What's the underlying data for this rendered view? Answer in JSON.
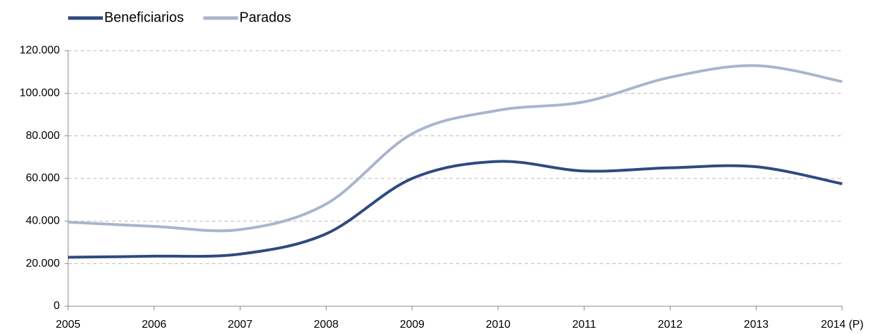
{
  "chart_data": {
    "type": "line",
    "categories": [
      "2005",
      "2006",
      "2007",
      "2008",
      "2009",
      "2010",
      "2011",
      "2012",
      "2013",
      "2014 (P)"
    ],
    "series": [
      {
        "name": "Beneficiarios",
        "color": "#2e4a7f",
        "values": [
          23000,
          23500,
          24500,
          34000,
          60000,
          68000,
          63500,
          65000,
          65500,
          57500
        ]
      },
      {
        "name": "Parados",
        "color": "#a9b5cc",
        "values": [
          39500,
          37500,
          36000,
          48000,
          81000,
          92000,
          96000,
          107500,
          113000,
          105500
        ]
      }
    ],
    "ylim": [
      0,
      120000
    ],
    "yticks": [
      0,
      {
        "value": 20000,
        "label": "20.000"
      },
      {
        "value": 40000,
        "label": "40.000"
      },
      {
        "value": 60000,
        "label": "60.000"
      },
      {
        "value": 80000,
        "label": "80.000"
      },
      {
        "value": 100000,
        "label": "100.000"
      },
      {
        "value": 120000,
        "label": "120.000"
      }
    ],
    "grid": true,
    "legend": "top-left"
  }
}
